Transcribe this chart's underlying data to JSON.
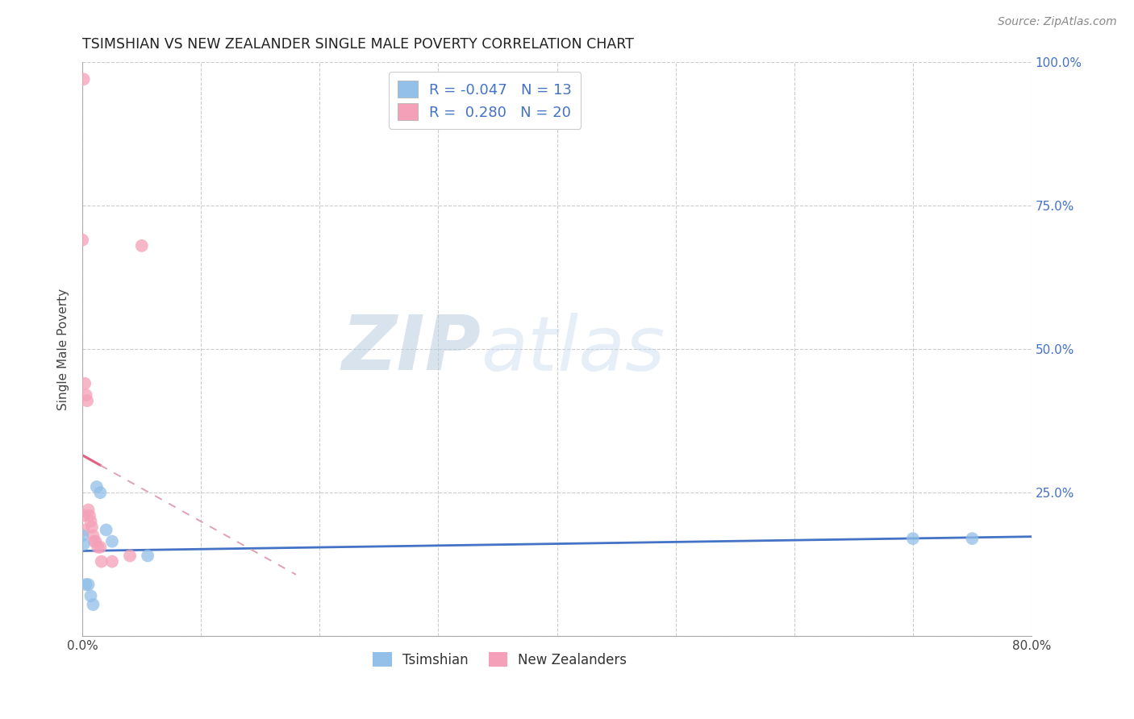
{
  "title": "TSIMSHIAN VS NEW ZEALANDER SINGLE MALE POVERTY CORRELATION CHART",
  "source": "Source: ZipAtlas.com",
  "ylabel": "Single Male Poverty",
  "xlim": [
    0,
    0.8
  ],
  "ylim": [
    0,
    1.0
  ],
  "xtick_pos": [
    0.0,
    0.1,
    0.2,
    0.3,
    0.4,
    0.5,
    0.6,
    0.7,
    0.8
  ],
  "xticklabels": [
    "0.0%",
    "",
    "",
    "",
    "",
    "",
    "",
    "",
    "80.0%"
  ],
  "ytick_pos": [
    0.0,
    0.25,
    0.5,
    0.75,
    1.0
  ],
  "yticklabels": [
    "",
    "25.0%",
    "50.0%",
    "75.0%",
    "100.0%"
  ],
  "tsimshian_color": "#92C0E8",
  "nz_color": "#F4A0B8",
  "tsimshian_R": -0.047,
  "tsimshian_N": 13,
  "nz_R": 0.28,
  "nz_N": 20,
  "tsimshian_line_color": "#4472C4",
  "nz_line_color": "#E06080",
  "nz_dash_color": "#E0A0B4",
  "watermark_zip": "ZIP",
  "watermark_atlas": "atlas",
  "legend_labels": [
    "Tsimshian",
    "New Zealanders"
  ],
  "grid_color": "#CCCCCC",
  "bg_color": "#FFFFFF",
  "tsimshian_x": [
    0.0,
    0.003,
    0.005,
    0.007,
    0.009,
    0.012,
    0.015,
    0.02,
    0.025,
    0.055,
    0.7,
    0.75,
    0.001
  ],
  "tsimshian_y": [
    0.175,
    0.09,
    0.09,
    0.07,
    0.055,
    0.26,
    0.25,
    0.185,
    0.165,
    0.14,
    0.17,
    0.17,
    0.16
  ],
  "nz_x": [
    0.001,
    0.002,
    0.003,
    0.004,
    0.005,
    0.006,
    0.007,
    0.008,
    0.009,
    0.01,
    0.011,
    0.013,
    0.015,
    0.016,
    0.025,
    0.04,
    0.05,
    0.001,
    0.0,
    0.001
  ],
  "nz_y": [
    0.97,
    0.44,
    0.42,
    0.41,
    0.22,
    0.21,
    0.2,
    0.19,
    0.175,
    0.165,
    0.165,
    0.155,
    0.155,
    0.13,
    0.13,
    0.14,
    0.68,
    0.21,
    0.69,
    0.185
  ]
}
